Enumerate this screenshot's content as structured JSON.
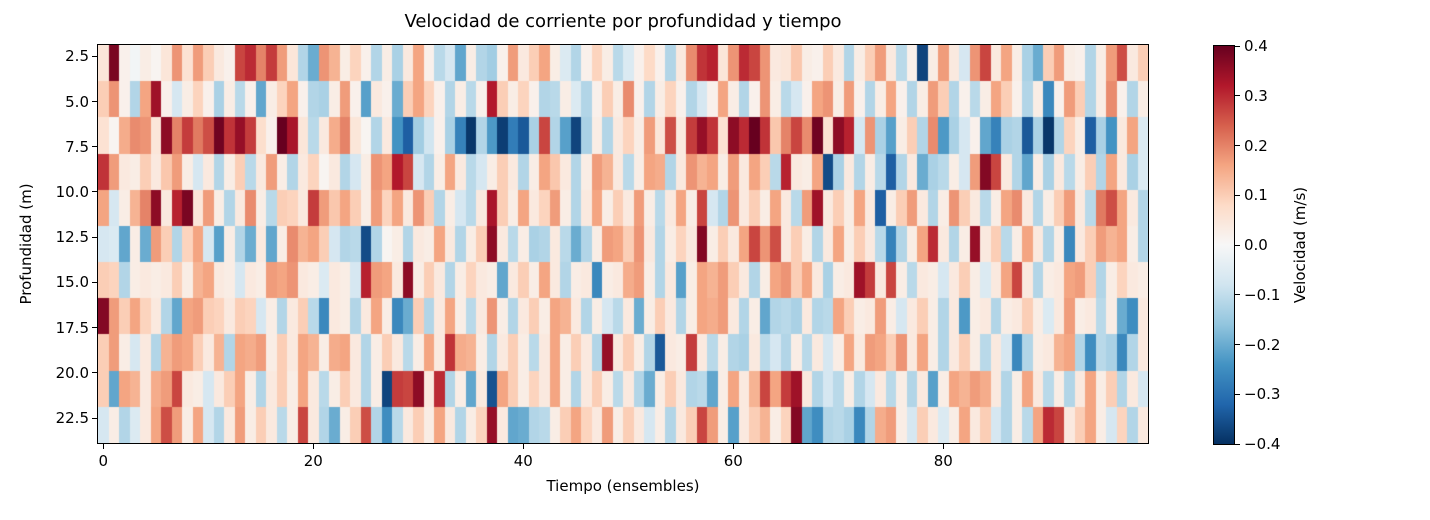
{
  "chart_data": {
    "type": "heatmap",
    "title": "Velocidad de corriente por profundidad y tiempo",
    "xlabel": "Tiempo (ensembles)",
    "ylabel": "Profundidad (m)",
    "colorbar_label": "Velocidad (m/s)",
    "vmin": -0.4,
    "vmax": 0.4,
    "n_ensembles": 100,
    "n_depth_bins": 11,
    "x_extent": [
      -0.5,
      99.5
    ],
    "depth_extent": [
      1.875,
      23.875
    ],
    "grid": false,
    "x_ticks": [
      {
        "v": 0,
        "label": "0"
      },
      {
        "v": 20,
        "label": "20"
      },
      {
        "v": 40,
        "label": "40"
      },
      {
        "v": 60,
        "label": "60"
      },
      {
        "v": 80,
        "label": "80"
      }
    ],
    "y_ticks": [
      {
        "v": 2.5,
        "label": "2.5"
      },
      {
        "v": 5.0,
        "label": "5.0"
      },
      {
        "v": 7.5,
        "label": "7.5"
      },
      {
        "v": 10.0,
        "label": "10.0"
      },
      {
        "v": 12.5,
        "label": "12.5"
      },
      {
        "v": 15.0,
        "label": "15.0"
      },
      {
        "v": 17.5,
        "label": "17.5"
      },
      {
        "v": 20.0,
        "label": "20.0"
      },
      {
        "v": 22.5,
        "label": "22.5"
      }
    ],
    "colorbar_ticks": [
      {
        "f": 0.0,
        "label": "0.4"
      },
      {
        "f": 0.125,
        "label": "0.3"
      },
      {
        "f": 0.25,
        "label": "0.2"
      },
      {
        "f": 0.375,
        "label": "0.1"
      },
      {
        "f": 0.5,
        "label": "0.0"
      },
      {
        "f": 0.625,
        "label": "−0.1"
      },
      {
        "f": 0.75,
        "label": "−0.2"
      },
      {
        "f": 0.875,
        "label": "−0.3"
      },
      {
        "f": 1.0,
        "label": "−0.4"
      }
    ],
    "colors": {
      "background": "#ffffff",
      "frame": "#000000",
      "text": "#000000"
    },
    "colormap": {
      "name": "RdBu_r",
      "stops_top_to_bottom": [
        "#67001f",
        "#b2182b",
        "#d6604d",
        "#f4a582",
        "#fddbc7",
        "#f7f7f7",
        "#d1e5f0",
        "#92c5de",
        "#4393c3",
        "#2166ac",
        "#053061"
      ]
    },
    "values": [
      [
        0.05,
        0.38,
        0.02,
        -0.01,
        0.03,
        0.01,
        0.05,
        0.18,
        0.06,
        0.17,
        0.1,
        0.04,
        0.02,
        0.27,
        0.3,
        0.2,
        0.28,
        0.17,
        0.05,
        -0.12,
        -0.2,
        0.18,
        0.14,
        0.03,
        0.09,
        0.02,
        -0.12,
        0.03,
        -0.13,
        0.04,
        0.16,
        0.02,
        -0.11,
        -0.07,
        -0.21,
        0.03,
        -0.12,
        -0.14,
        0.02,
        0.17,
        0.04,
        0.1,
        0.16,
        0.03,
        -0.06,
        -0.12,
        0.02,
        0.09,
        0.03,
        -0.11,
        -0.06,
        0.02,
        0.08,
        0.02,
        -0.12,
        0.04,
        0.19,
        0.29,
        0.31,
        0.05,
        0.18,
        0.3,
        0.27,
        0.18,
        0.04,
        0.05,
        0.11,
        0.03,
        0.02,
        0.1,
        0.04,
        -0.12,
        0.03,
        0.1,
        0.17,
        0.04,
        -0.11,
        0.02,
        -0.37,
        0.03,
        0.17,
        0.04,
        -0.07,
        0.18,
        0.27,
        0.04,
        0.16,
        0.03,
        -0.13,
        -0.2,
        0.1,
        0.17,
        0.03,
        0.02,
        -0.12,
        0.03,
        0.17,
        0.26,
        0.04,
        0.1
      ],
      [
        0.1,
        0.18,
        0.02,
        -0.12,
        0.16,
        0.34,
        0.02,
        -0.07,
        0.03,
        0.09,
        0.02,
        -0.13,
        0.03,
        -0.11,
        0.02,
        -0.21,
        0.03,
        0.09,
        0.16,
        0.02,
        -0.12,
        -0.13,
        0.03,
        0.17,
        0.02,
        -0.22,
        0.04,
        0.02,
        -0.2,
        0.1,
        0.16,
        0.09,
        0.02,
        -0.12,
        0.03,
        -0.11,
        0.02,
        0.32,
        0.1,
        0.03,
        0.09,
        0.02,
        -0.12,
        -0.11,
        0.03,
        -0.06,
        -0.12,
        0.02,
        0.1,
        0.03,
        0.19,
        0.02,
        -0.12,
        0.03,
        0.09,
        0.02,
        -0.12,
        -0.07,
        0.02,
        0.16,
        0.03,
        -0.12,
        0.02,
        0.18,
        0.03,
        -0.11,
        -0.07,
        0.02,
        0.16,
        0.18,
        0.03,
        0.17,
        0.02,
        -0.12,
        0.03,
        0.16,
        0.02,
        -0.12,
        0.03,
        0.17,
        0.1,
        -0.12,
        0.02,
        -0.11,
        0.03,
        0.16,
        0.1,
        0.02,
        -0.12,
        0.03,
        -0.26,
        0.02,
        0.17,
        0.1,
        -0.12,
        0.03,
        0.19,
        0.02,
        -0.12,
        0.03
      ],
      [
        0.06,
        0.01,
        0.15,
        0.19,
        0.18,
        0.05,
        0.36,
        0.2,
        0.28,
        0.21,
        0.26,
        0.39,
        0.29,
        0.35,
        0.28,
        0.07,
        0.02,
        0.4,
        0.33,
        0.05,
        -0.11,
        0.04,
        0.15,
        0.2,
        0.05,
        0.01,
        -0.12,
        0.04,
        -0.24,
        -0.33,
        -0.14,
        -0.08,
        0.02,
        -0.13,
        -0.27,
        -0.39,
        -0.12,
        -0.23,
        -0.38,
        -0.28,
        -0.34,
        -0.13,
        0.27,
        -0.12,
        -0.22,
        -0.37,
        -0.13,
        0.03,
        -0.12,
        0.04,
        0.09,
        0.03,
        0.17,
        0.05,
        0.26,
        0.04,
        0.28,
        0.35,
        0.29,
        0.06,
        0.36,
        0.3,
        0.4,
        0.29,
        0.11,
        0.2,
        0.27,
        0.19,
        0.39,
        0.06,
        0.36,
        0.31,
        -0.07,
        0.18,
        -0.13,
        -0.22,
        0.03,
        0.1,
        -0.12,
        0.19,
        -0.23,
        -0.13,
        -0.07,
        0.02,
        -0.21,
        -0.27,
        -0.13,
        -0.12,
        -0.34,
        -0.13,
        -0.39,
        -0.12,
        0.09,
        0.03,
        -0.33,
        -0.13,
        -0.24,
        0.04,
        0.16,
        -0.06
      ],
      [
        0.29,
        0.17,
        0.04,
        0.03,
        0.1,
        0.04,
        0.11,
        0.17,
        0.03,
        -0.07,
        0.04,
        -0.12,
        0.03,
        0.1,
        -0.11,
        0.04,
        0.17,
        0.03,
        -0.12,
        0.04,
        0.09,
        0.01,
        0.04,
        -0.12,
        -0.07,
        0.03,
        0.18,
        0.16,
        0.32,
        0.27,
        -0.07,
        -0.12,
        0.03,
        0.16,
        0.04,
        -0.11,
        -0.07,
        0.03,
        0.1,
        0.04,
        -0.12,
        0.03,
        0.16,
        0.11,
        0.04,
        -0.12,
        0.03,
        0.17,
        0.14,
        0.04,
        -0.11,
        0.03,
        0.16,
        0.15,
        -0.12,
        0.04,
        0.18,
        0.14,
        0.16,
        0.03,
        0.17,
        0.04,
        0.16,
        0.1,
        -0.11,
        0.31,
        0.04,
        0.03,
        0.16,
        -0.36,
        -0.13,
        0.04,
        -0.12,
        0.03,
        -0.11,
        -0.33,
        -0.12,
        0.04,
        -0.2,
        -0.13,
        -0.11,
        0.03,
        -0.07,
        0.17,
        0.37,
        0.27,
        0.04,
        -0.12,
        -0.21,
        0.03,
        -0.13,
        0.04,
        -0.11,
        0.03,
        0.1,
        -0.12,
        0.16,
        0.04,
        -0.13,
        -0.06
      ],
      [
        0.16,
        -0.07,
        0.03,
        0.14,
        0.2,
        0.36,
        0.04,
        0.31,
        0.38,
        0.05,
        0.17,
        0.03,
        -0.12,
        0.04,
        0.19,
        0.03,
        -0.11,
        0.1,
        0.09,
        0.04,
        0.28,
        0.17,
        0.11,
        0.16,
        0.1,
        0.03,
        0.17,
        0.09,
        0.16,
        0.04,
        0.18,
        0.1,
        -0.12,
        0.03,
        -0.07,
        -0.11,
        0.04,
        0.33,
        0.1,
        0.03,
        0.16,
        0.04,
        0.09,
        0.17,
        0.03,
        -0.12,
        0.04,
        0.16,
        0.03,
        0.1,
        0.04,
        0.17,
        0.03,
        -0.11,
        0.04,
        0.16,
        0.03,
        0.27,
        -0.07,
        -0.12,
        0.18,
        0.04,
        0.1,
        0.03,
        0.16,
        0.04,
        -0.11,
        0.17,
        0.34,
        0.04,
        0.1,
        0.03,
        0.16,
        0.04,
        -0.33,
        0.03,
        0.1,
        0.17,
        0.04,
        -0.12,
        0.03,
        0.18,
        0.1,
        0.04,
        -0.11,
        0.03,
        0.16,
        0.19,
        0.04,
        -0.12,
        0.03,
        0.1,
        0.17,
        0.04,
        -0.11,
        0.21,
        0.26,
        0.16,
        0.04,
        -0.12
      ],
      [
        -0.07,
        -0.06,
        -0.21,
        0.03,
        -0.2,
        0.17,
        0.1,
        -0.12,
        0.09,
        0.16,
        -0.07,
        -0.22,
        0.03,
        -0.12,
        -0.2,
        0.04,
        -0.21,
        0.03,
        0.19,
        0.14,
        0.16,
        0.1,
        -0.07,
        -0.12,
        -0.11,
        -0.36,
        -0.12,
        0.01,
        0.03,
        -0.12,
        0.04,
        0.03,
        0.16,
        0.04,
        -0.12,
        0.03,
        0.1,
        0.36,
        0.04,
        -0.11,
        0.03,
        -0.13,
        -0.12,
        0.04,
        -0.11,
        -0.2,
        -0.12,
        0.03,
        0.17,
        0.16,
        0.1,
        0.18,
        0.04,
        -0.12,
        0.03,
        0.09,
        0.04,
        0.37,
        0.03,
        0.1,
        0.04,
        0.16,
        0.27,
        0.18,
        0.26,
        0.04,
        0.1,
        0.03,
        -0.12,
        0.04,
        0.16,
        0.03,
        0.1,
        0.04,
        -0.11,
        -0.27,
        -0.12,
        0.03,
        0.16,
        0.3,
        0.04,
        -0.12,
        0.03,
        0.35,
        0.04,
        0.1,
        -0.11,
        0.03,
        0.16,
        0.04,
        -0.12,
        0.03,
        -0.26,
        0.04,
        0.1,
        0.17,
        0.14,
        0.16,
        0.03,
        -0.12
      ],
      [
        0.1,
        0.09,
        -0.12,
        0.03,
        0.04,
        0.03,
        0.04,
        0.1,
        0.03,
        0.14,
        0.16,
        0.04,
        0.03,
        -0.07,
        0.04,
        0.03,
        0.17,
        0.16,
        0.18,
        0.04,
        0.03,
        -0.06,
        0.04,
        0.03,
        -0.07,
        0.31,
        0.17,
        0.16,
        0.04,
        0.36,
        0.03,
        0.1,
        0.04,
        -0.12,
        0.03,
        0.09,
        0.04,
        0.03,
        -0.21,
        0.04,
        0.1,
        0.03,
        0.16,
        0.04,
        -0.12,
        0.03,
        0.04,
        -0.26,
        0.03,
        0.04,
        0.15,
        0.17,
        0.03,
        -0.12,
        0.04,
        -0.22,
        0.03,
        0.16,
        0.14,
        0.17,
        0.1,
        0.04,
        -0.12,
        0.03,
        0.16,
        0.18,
        0.1,
        0.16,
        0.04,
        -0.13,
        0.03,
        0.04,
        0.34,
        0.28,
        0.04,
        0.27,
        0.03,
        -0.11,
        0.04,
        0.03,
        -0.07,
        0.04,
        0.1,
        0.03,
        -0.06,
        0.04,
        0.16,
        0.27,
        0.04,
        -0.12,
        0.03,
        0.04,
        0.16,
        0.17,
        0.1,
        -0.12,
        0.03,
        0.09,
        0.04,
        0.03
      ],
      [
        0.37,
        0.17,
        0.1,
        0.16,
        0.09,
        0.04,
        -0.12,
        -0.21,
        0.16,
        0.17,
        0.1,
        0.09,
        0.04,
        0.1,
        0.09,
        -0.07,
        0.03,
        -0.12,
        0.04,
        0.1,
        -0.11,
        -0.26,
        0.04,
        0.03,
        -0.12,
        0.04,
        0.16,
        0.03,
        -0.26,
        -0.2,
        0.1,
        -0.12,
        0.04,
        0.16,
        0.03,
        -0.11,
        0.04,
        0.18,
        0.03,
        -0.12,
        0.04,
        0.1,
        0.03,
        0.16,
        0.14,
        0.04,
        -0.12,
        0.03,
        -0.07,
        -0.11,
        0.04,
        -0.2,
        0.03,
        0.1,
        0.04,
        -0.12,
        0.03,
        0.16,
        0.15,
        0.17,
        0.04,
        -0.12,
        0.03,
        -0.21,
        -0.12,
        -0.11,
        -0.13,
        0.04,
        -0.12,
        -0.11,
        0.16,
        0.1,
        0.03,
        0.04,
        0.17,
        0.03,
        -0.07,
        0.04,
        0.1,
        0.03,
        -0.12,
        0.04,
        -0.23,
        0.03,
        0.04,
        -0.12,
        0.03,
        0.04,
        0.1,
        0.03,
        -0.06,
        0.04,
        0.17,
        0.03,
        0.04,
        -0.11,
        0.03,
        -0.2,
        -0.25,
        0.04
      ],
      [
        0.1,
        0.17,
        0.03,
        -0.07,
        0.04,
        -0.12,
        0.14,
        0.17,
        0.16,
        0.1,
        0.04,
        0.14,
        -0.12,
        0.16,
        0.15,
        0.17,
        0.03,
        0.1,
        0.04,
        0.16,
        0.14,
        0.03,
        0.15,
        0.16,
        0.04,
        -0.12,
        0.03,
        0.1,
        0.04,
        -0.11,
        0.03,
        0.16,
        0.04,
        0.29,
        0.15,
        0.14,
        0.03,
        -0.12,
        0.04,
        0.1,
        0.03,
        -0.11,
        0.04,
        0.16,
        0.03,
        0.1,
        0.04,
        -0.12,
        0.35,
        0.04,
        0.1,
        0.03,
        -0.12,
        -0.34,
        0.04,
        0.03,
        0.28,
        0.04,
        -0.11,
        0.03,
        -0.12,
        -0.13,
        0.04,
        -0.11,
        -0.07,
        -0.12,
        0.03,
        -0.11,
        0.04,
        -0.07,
        0.03,
        0.16,
        0.04,
        0.17,
        0.16,
        0.1,
        0.18,
        0.04,
        0.16,
        0.03,
        -0.12,
        0.04,
        0.1,
        0.03,
        -0.11,
        0.04,
        -0.07,
        -0.26,
        -0.12,
        0.03,
        0.04,
        0.14,
        0.16,
        -0.12,
        -0.25,
        -0.11,
        -0.13,
        -0.26,
        -0.12,
        0.04
      ],
      [
        0.1,
        -0.21,
        0.16,
        0.14,
        0.04,
        0.15,
        0.17,
        0.27,
        0.04,
        0.03,
        -0.07,
        0.04,
        0.1,
        0.16,
        0.03,
        -0.12,
        0.04,
        0.1,
        0.03,
        0.16,
        0.04,
        -0.11,
        0.03,
        0.1,
        0.04,
        -0.12,
        0.03,
        -0.37,
        0.28,
        0.27,
        0.36,
        0.04,
        0.3,
        -0.12,
        0.03,
        -0.21,
        0.04,
        -0.35,
        0.16,
        0.1,
        0.03,
        0.09,
        0.04,
        0.16,
        0.03,
        -0.12,
        0.04,
        0.1,
        0.03,
        -0.11,
        0.04,
        -0.12,
        -0.2,
        0.03,
        0.1,
        0.04,
        -0.12,
        -0.11,
        -0.21,
        0.03,
        0.16,
        0.04,
        0.14,
        0.27,
        0.16,
        0.28,
        0.34,
        0.04,
        -0.12,
        -0.07,
        -0.11,
        0.03,
        -0.12,
        -0.07,
        0.04,
        -0.11,
        0.03,
        -0.12,
        0.04,
        -0.22,
        0.03,
        0.16,
        0.14,
        0.17,
        0.15,
        0.04,
        -0.12,
        0.03,
        0.16,
        0.04,
        -0.11,
        0.03,
        -0.12,
        0.04,
        0.16,
        0.03,
        0.1,
        -0.12,
        0.04,
        -0.07
      ],
      [
        -0.07,
        0.03,
        -0.12,
        -0.06,
        0.04,
        0.16,
        0.26,
        0.17,
        0.03,
        0.16,
        -0.07,
        -0.12,
        0.04,
        0.17,
        0.03,
        0.1,
        0.04,
        -0.11,
        0.03,
        0.27,
        0.04,
        -0.12,
        -0.2,
        0.03,
        0.1,
        0.26,
        -0.12,
        -0.25,
        -0.11,
        0.04,
        0.1,
        0.03,
        0.16,
        0.04,
        -0.12,
        0.03,
        0.09,
        0.35,
        0.04,
        -0.21,
        -0.2,
        -0.12,
        -0.11,
        0.03,
        0.1,
        0.16,
        0.09,
        0.04,
        0.17,
        0.03,
        0.1,
        0.04,
        -0.07,
        0.03,
        -0.12,
        0.04,
        0.1,
        0.27,
        0.17,
        0.03,
        -0.22,
        0.04,
        0.1,
        0.14,
        0.03,
        0.09,
        0.37,
        -0.21,
        -0.25,
        -0.12,
        -0.11,
        -0.13,
        -0.26,
        -0.12,
        0.15,
        0.17,
        0.03,
        -0.07,
        0.1,
        0.04,
        -0.06,
        0.03,
        0.16,
        0.04,
        0.1,
        -0.07,
        -0.12,
        0.03,
        -0.11,
        0.16,
        0.3,
        0.27,
        0.04,
        0.1,
        0.16,
        0.03,
        -0.07,
        0.09,
        -0.12,
        0.04
      ]
    ]
  }
}
